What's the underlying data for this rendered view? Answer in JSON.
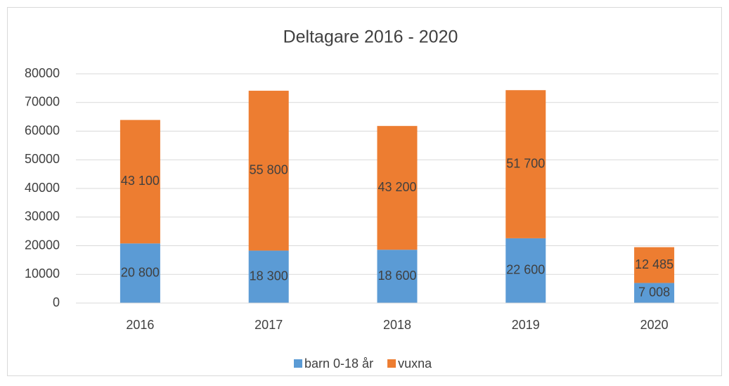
{
  "chart_data": {
    "type": "bar",
    "stacked": true,
    "title": "Deltagare 2016 - 2020",
    "categories": [
      "2016",
      "2017",
      "2018",
      "2019",
      "2020"
    ],
    "series": [
      {
        "name": "barn 0-18 år",
        "color": "#5b9bd5",
        "values": [
          20800,
          18300,
          18600,
          22600,
          7008
        ],
        "value_labels": [
          "20 800",
          "18 300",
          "18 600",
          "22 600",
          "7 008"
        ]
      },
      {
        "name": "vuxna",
        "color": "#ed7d31",
        "values": [
          43100,
          55800,
          43200,
          51700,
          12485
        ],
        "value_labels": [
          "43 100",
          "55 800",
          "43 200",
          "51 700",
          "12 485"
        ]
      }
    ],
    "ylim": [
      0,
      80000
    ],
    "yticks": [
      0,
      10000,
      20000,
      30000,
      40000,
      50000,
      60000,
      70000,
      80000
    ],
    "grid": true,
    "legend": "bottom"
  }
}
